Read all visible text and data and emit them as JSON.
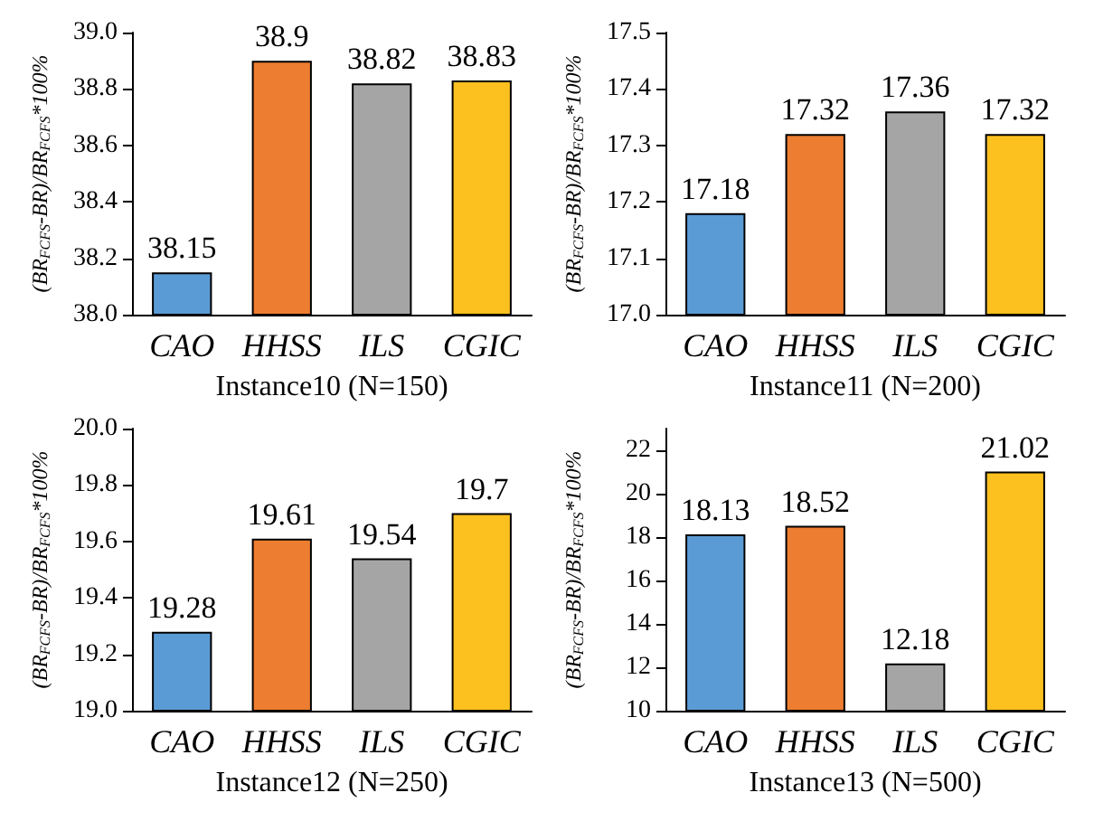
{
  "chart_data": [
    {
      "type": "bar",
      "xlabel": "Instance10 (N=150)",
      "ylabel": "(BR$_{FCFS}$-BR)/BR$_{FCFS}$*100%",
      "categories": [
        "CAO",
        "HHSS",
        "ILS",
        "CGIC"
      ],
      "values": [
        38.15,
        38.9,
        38.82,
        38.83
      ],
      "colors": [
        "#5b9bd5",
        "#ed7d31",
        "#a5a5a5",
        "#fcc11e"
      ],
      "ylim": [
        38,
        39
      ],
      "yticks": [
        {
          "value": 38,
          "label": "38.0"
        },
        38.2,
        38.4,
        38.6,
        38.8,
        {
          "value": 39,
          "label": "39.0"
        }
      ],
      "data_labels": true,
      "grid": false
    },
    {
      "type": "bar",
      "xlabel": "Instance11 (N=200)",
      "ylabel": "(BR$_{FCFS}$-BR)/BR$_{FCFS}$*100%",
      "categories": [
        "CAO",
        "HHSS",
        "ILS",
        "CGIC"
      ],
      "values": [
        17.18,
        17.32,
        17.36,
        17.32
      ],
      "colors": [
        "#5b9bd5",
        "#ed7d31",
        "#a5a5a5",
        "#fcc11e"
      ],
      "ylim": [
        17,
        17.5
      ],
      "yticks": [
        {
          "value": 17,
          "label": "17.0"
        },
        17.1,
        17.2,
        17.3,
        17.4,
        {
          "value": 17.5,
          "label": "17.5"
        }
      ],
      "data_labels": true,
      "grid": false
    },
    {
      "type": "bar",
      "xlabel": "Instance12 (N=250)",
      "ylabel": "(BR$_{FCFS}$-BR)/BR$_{FCFS}$*100%",
      "categories": [
        "CAO",
        "HHSS",
        "ILS",
        "CGIC"
      ],
      "values": [
        19.28,
        19.61,
        19.54,
        19.7
      ],
      "colors": [
        "#5b9bd5",
        "#ed7d31",
        "#a5a5a5",
        "#fcc11e"
      ],
      "ylim": [
        19,
        20
      ],
      "yticks": [
        {
          "value": 19,
          "label": "19.0"
        },
        19.2,
        19.4,
        19.6,
        19.8,
        {
          "value": 20,
          "label": "20.0"
        }
      ],
      "data_labels": true,
      "grid": false
    },
    {
      "type": "bar",
      "xlabel": "Instance13 (N=500)",
      "ylabel": "(BR$_{FCFS}$-BR)/BR$_{FCFS}$*100%",
      "categories": [
        "CAO",
        "HHSS",
        "ILS",
        "CGIC"
      ],
      "values": [
        18.13,
        18.52,
        12.18,
        21.02
      ],
      "colors": [
        "#5b9bd5",
        "#ed7d31",
        "#a5a5a5",
        "#fcc11e"
      ],
      "ylim": [
        10,
        23
      ],
      "yticks": [
        10,
        12,
        14,
        16,
        18,
        20,
        22
      ],
      "data_labels": true,
      "grid": false
    }
  ]
}
